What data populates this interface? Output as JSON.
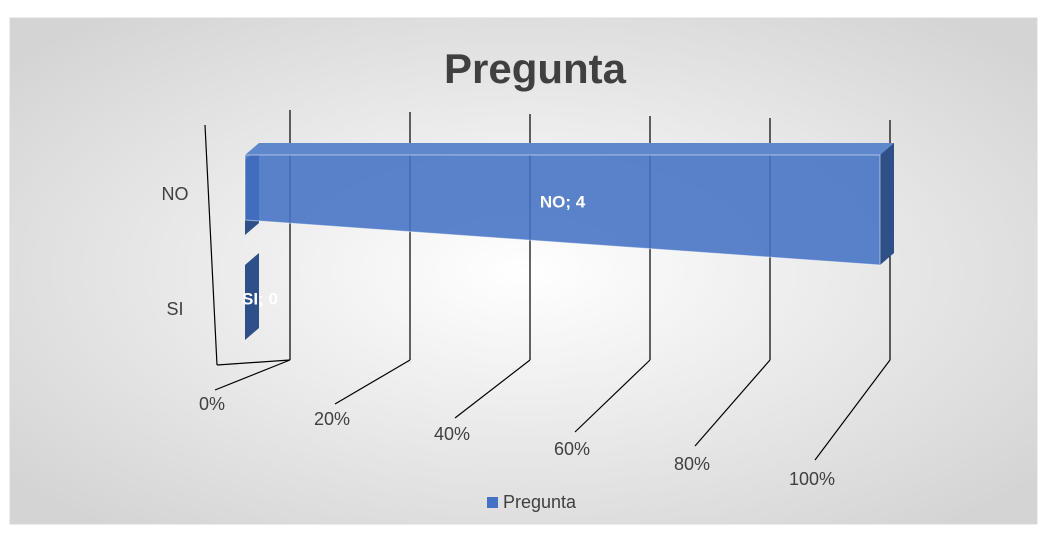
{
  "chart_data": {
    "type": "bar",
    "stacking": "percent",
    "orientation": "horizontal",
    "title": "Pregunta",
    "categories": [
      "SI",
      "NO"
    ],
    "series": [
      {
        "name": "Pregunta",
        "color": "#4472c4",
        "values": [
          0,
          4
        ],
        "value_labels": [
          "SI; 0",
          "NO; 4"
        ]
      }
    ],
    "xlim": [
      0,
      100
    ],
    "xticks": [
      {
        "value": 0,
        "label": "0%"
      },
      {
        "value": 20,
        "label": "20%"
      },
      {
        "value": 40,
        "label": "40%"
      },
      {
        "value": 60,
        "label": "60%"
      },
      {
        "value": 80,
        "label": "80%"
      },
      {
        "value": 100,
        "label": "100%"
      }
    ],
    "grid": true,
    "legend": "bottom"
  }
}
